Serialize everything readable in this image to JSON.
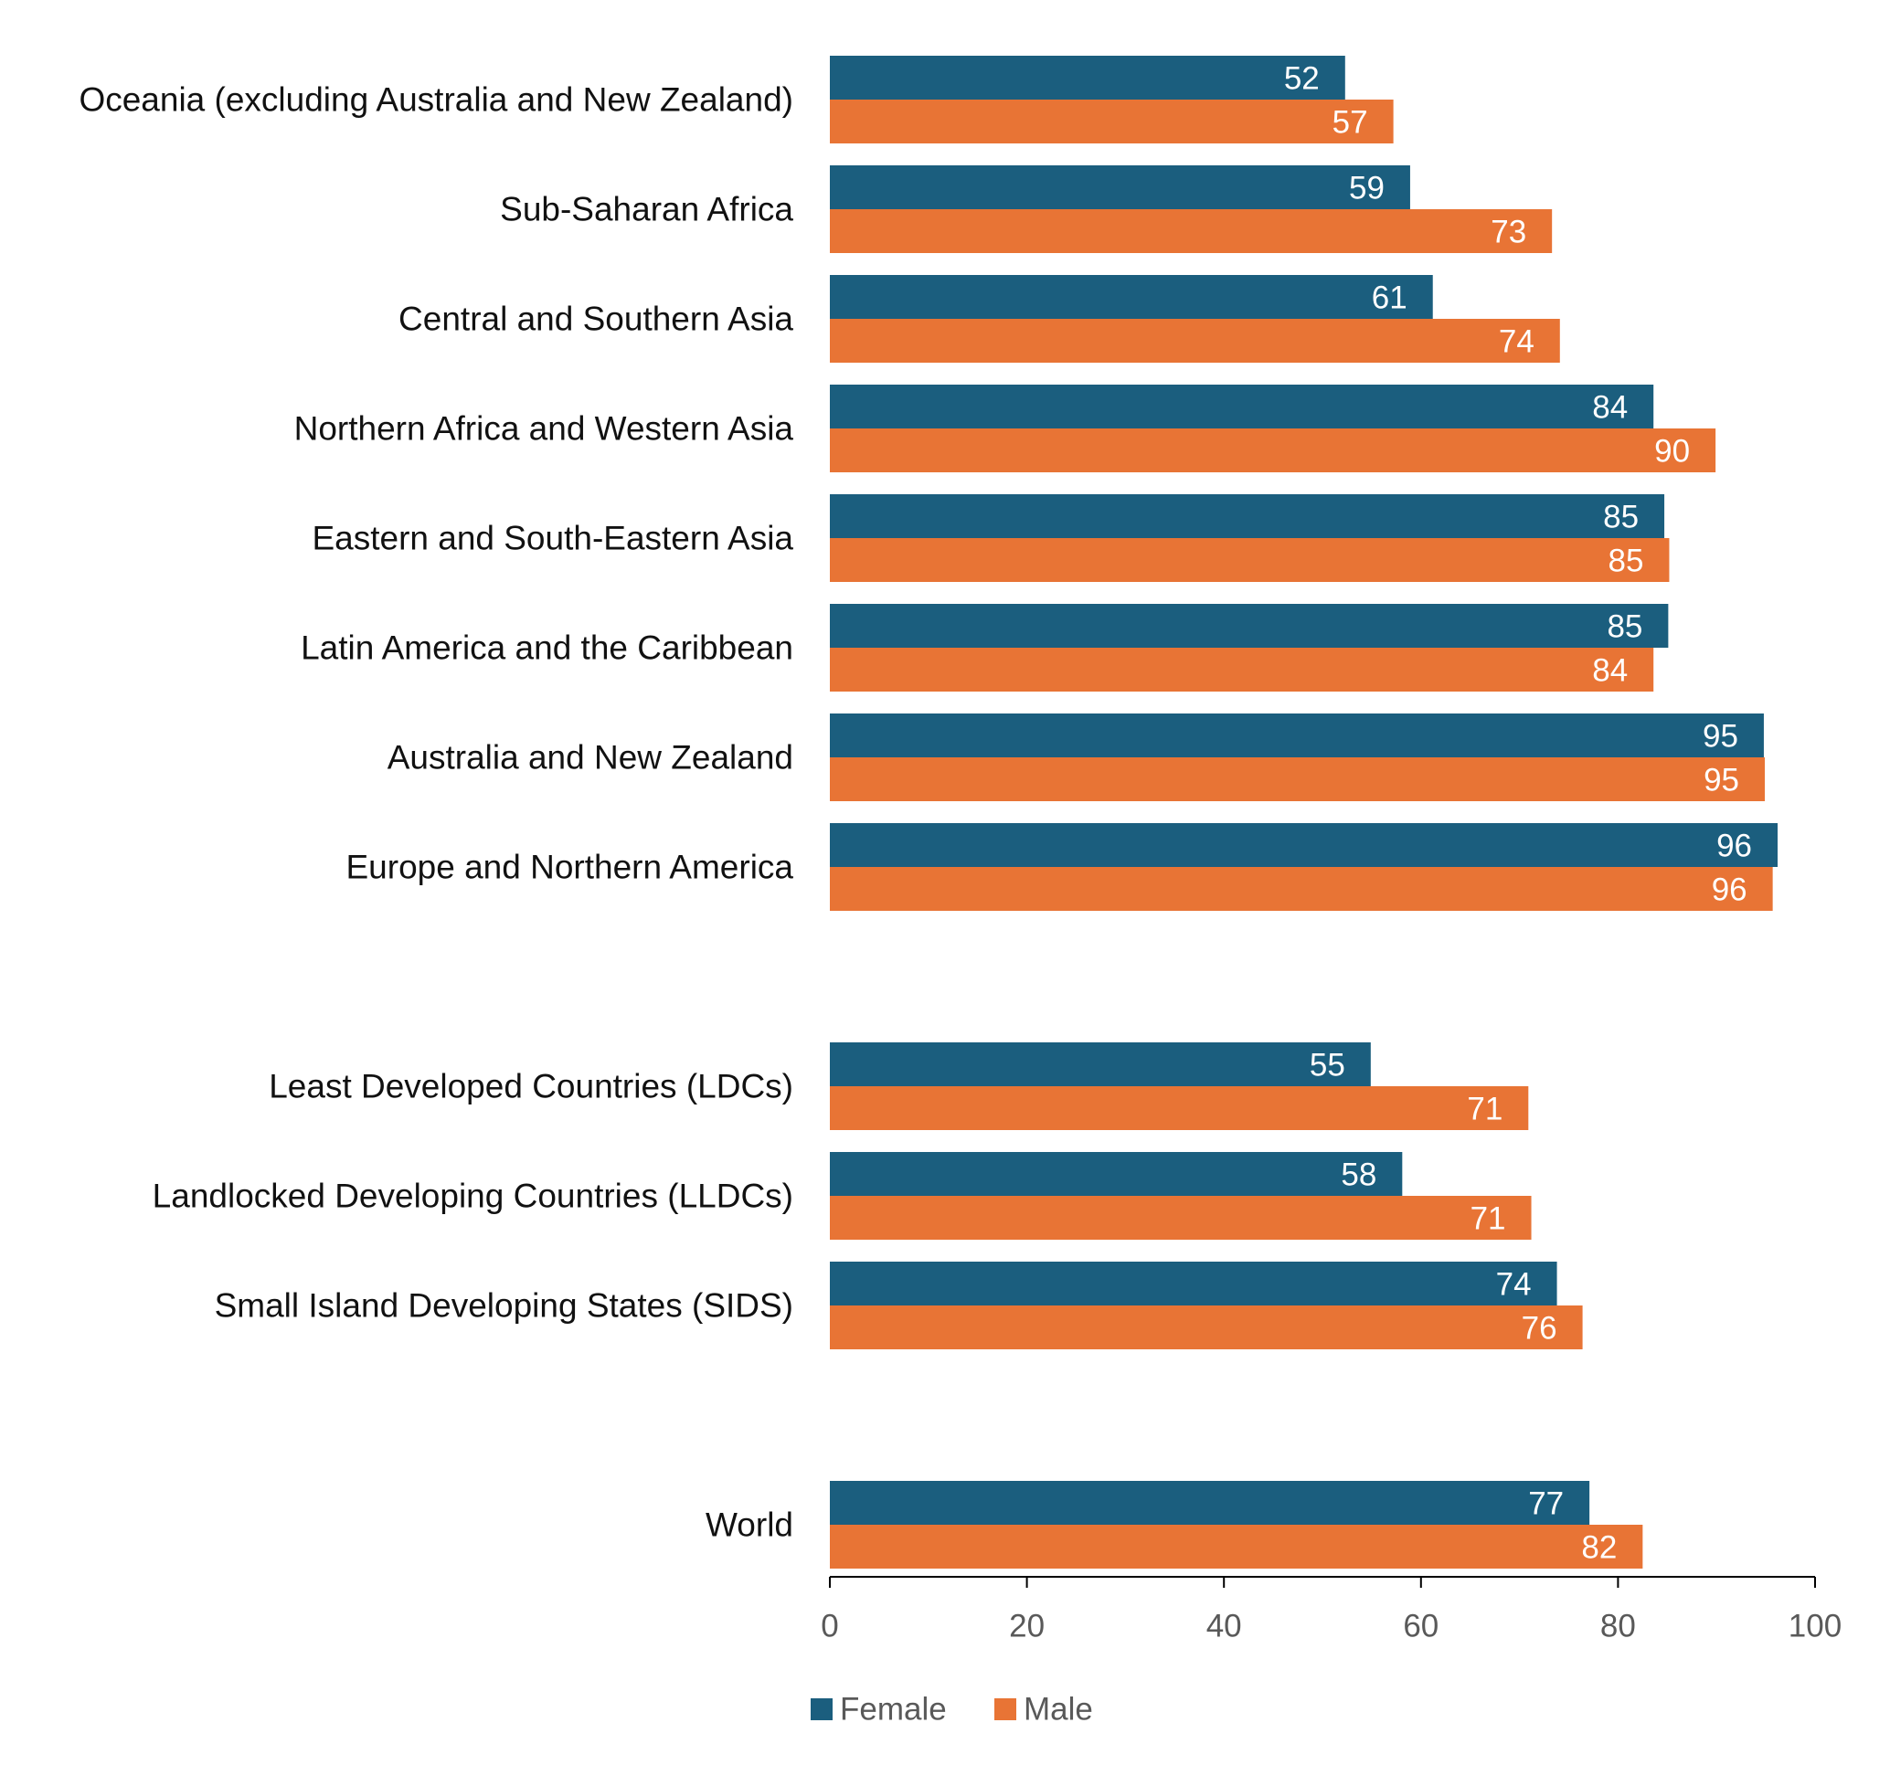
{
  "chart_data": {
    "type": "bar",
    "orientation": "horizontal",
    "categories": [
      "Oceania (excluding Australia and New Zealand)",
      "Sub-Saharan Africa",
      "Central and Southern Asia",
      "Northern Africa and Western Asia",
      "Eastern and South-Eastern Asia",
      "Latin America and the Caribbean",
      "Australia and New Zealand",
      "Europe and Northern America",
      "Least Developed Countries (LDCs)",
      "Landlocked Developing Countries (LLDCs)",
      "Small Island Developing States (SIDS)",
      "World"
    ],
    "groups": [
      [
        0,
        1,
        2,
        3,
        4,
        5,
        6,
        7
      ],
      [
        8,
        9,
        10
      ],
      [
        11
      ]
    ],
    "series": [
      {
        "name": "Female",
        "color": "#1b5e7e",
        "values": [
          52.3,
          58.9,
          61.2,
          83.6,
          84.7,
          85.1,
          94.8,
          96.2,
          54.9,
          58.1,
          73.8,
          77.1
        ],
        "labels": [
          "52",
          "59",
          "61",
          "84",
          "85",
          "85",
          "95",
          "96",
          "55",
          "58",
          "74",
          "77"
        ]
      },
      {
        "name": "Male",
        "color": "#e87435",
        "values": [
          57.2,
          73.3,
          74.1,
          89.9,
          85.2,
          83.6,
          94.9,
          95.7,
          70.9,
          71.2,
          76.4,
          82.5
        ],
        "labels": [
          "57",
          "73",
          "74",
          "90",
          "85",
          "84",
          "95",
          "96",
          "71",
          "71",
          "76",
          "82"
        ]
      }
    ],
    "xaxis": {
      "range": [
        0,
        100
      ],
      "ticks": [
        0,
        20,
        40,
        60,
        80,
        100
      ],
      "tick_labels": [
        "0",
        "20",
        "40",
        "60",
        "80",
        "100"
      ]
    },
    "title": "",
    "xlabel": "",
    "ylabel": "",
    "grid": false,
    "legend": {
      "position": "bottom",
      "entries": [
        "Female",
        "Male"
      ]
    }
  }
}
